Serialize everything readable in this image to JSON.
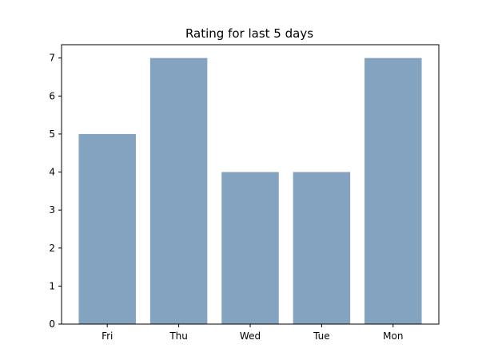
{
  "chart_data": {
    "type": "bar",
    "title": "Rating for last 5 days",
    "xlabel": "",
    "ylabel": "",
    "categories": [
      "Fri",
      "Thu",
      "Wed",
      "Tue",
      "Mon"
    ],
    "values": [
      5,
      7,
      4,
      4,
      7
    ],
    "ylim": [
      0,
      7.35
    ],
    "yticks": [
      0,
      1,
      2,
      3,
      4,
      5,
      6,
      7
    ],
    "grid": false,
    "bar_color": "#83a3c0",
    "axis_color": "#000000",
    "background": "#ffffff"
  }
}
